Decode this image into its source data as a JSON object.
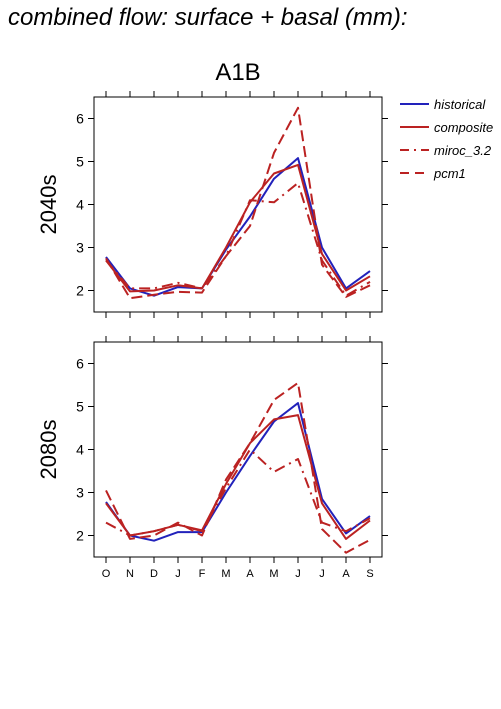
{
  "page": {
    "title": "combined flow: surface + basal (mm):"
  },
  "scenario_label": "A1B",
  "legend": [
    {
      "name": "historical",
      "color": "#2222bb",
      "dash": "solid"
    },
    {
      "name": "composite",
      "color": "#bb2222",
      "dash": "solid"
    },
    {
      "name": "miroc_3.2",
      "color": "#bb2222",
      "dash": "dashdot"
    },
    {
      "name": "pcm1",
      "color": "#bb2222",
      "dash": "dashed"
    }
  ],
  "chart_data": [
    {
      "type": "line",
      "panel_label": "2040s",
      "categories": [
        "O",
        "N",
        "D",
        "J",
        "F",
        "M",
        "A",
        "M",
        "J",
        "J",
        "A",
        "S"
      ],
      "ylim": [
        1.5,
        6.5
      ],
      "yticks": [
        2,
        3,
        4,
        5,
        6
      ],
      "series": [
        {
          "name": "historical",
          "values": [
            2.78,
            2.05,
            1.88,
            2.08,
            2.05,
            2.95,
            3.72,
            4.6,
            5.08,
            3.0,
            2.05,
            2.45
          ]
        },
        {
          "name": "composite",
          "values": [
            2.7,
            1.98,
            2.0,
            2.12,
            2.05,
            3.0,
            4.05,
            4.72,
            4.92,
            2.85,
            2.0,
            2.33
          ]
        },
        {
          "name": "miroc_3.2",
          "values": [
            2.7,
            2.05,
            2.05,
            2.18,
            2.05,
            2.8,
            4.1,
            4.05,
            4.5,
            2.7,
            1.88,
            2.2
          ]
        },
        {
          "name": "pcm1",
          "values": [
            2.75,
            1.82,
            1.9,
            1.97,
            1.95,
            2.8,
            3.5,
            5.2,
            6.25,
            2.6,
            1.85,
            2.12
          ]
        }
      ]
    },
    {
      "type": "line",
      "panel_label": "2080s",
      "categories": [
        "O",
        "N",
        "D",
        "J",
        "F",
        "M",
        "A",
        "M",
        "J",
        "J",
        "A",
        "S"
      ],
      "ylim": [
        1.5,
        6.5
      ],
      "yticks": [
        2,
        3,
        4,
        5,
        6
      ],
      "series": [
        {
          "name": "historical",
          "values": [
            2.78,
            2.0,
            1.88,
            2.08,
            2.08,
            3.0,
            3.85,
            4.65,
            5.08,
            2.85,
            2.05,
            2.45
          ]
        },
        {
          "name": "composite",
          "values": [
            2.75,
            2.0,
            2.1,
            2.25,
            2.12,
            3.2,
            4.15,
            4.7,
            4.8,
            2.75,
            1.92,
            2.35
          ]
        },
        {
          "name": "miroc_3.2",
          "values": [
            2.3,
            2.0,
            2.1,
            2.25,
            2.1,
            3.1,
            4.0,
            3.48,
            3.78,
            2.3,
            2.1,
            2.4
          ]
        },
        {
          "name": "pcm1",
          "values": [
            3.05,
            1.92,
            2.0,
            2.3,
            2.0,
            3.3,
            4.15,
            5.15,
            5.55,
            2.15,
            1.6,
            1.9
          ]
        }
      ]
    }
  ]
}
